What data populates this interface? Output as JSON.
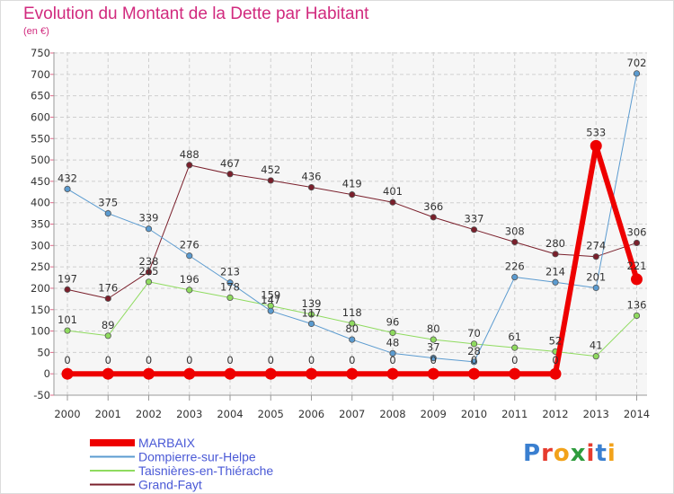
{
  "header": {
    "title": "Evolution du Montant de la Dette par Habitant",
    "subtitle": "(en €)"
  },
  "logo": {
    "text": "Proxiti",
    "colors": [
      "#3a7fd0",
      "#e63b2e",
      "#f2a21a",
      "#2e9c3d",
      "#e63b2e",
      "#3a7fd0",
      "#f2a21a"
    ]
  },
  "chart_data": {
    "type": "line",
    "title": "Evolution du Montant de la Dette par Habitant",
    "subtitle": "(en €)",
    "xlabel": "",
    "ylabel": "",
    "ylim": [
      -50,
      750
    ],
    "yticks": [
      -50,
      0,
      50,
      100,
      150,
      200,
      250,
      300,
      350,
      400,
      450,
      500,
      550,
      600,
      650,
      700,
      750
    ],
    "categories": [
      "2000",
      "2001",
      "2002",
      "2003",
      "2004",
      "2005",
      "2006",
      "2007",
      "2008",
      "2009",
      "2010",
      "2011",
      "2012",
      "2013",
      "2014"
    ],
    "grid": true,
    "legend_position": "bottom-left",
    "series": [
      {
        "name": "Grand-Fayt",
        "color": "#7a1f2b",
        "width": 1,
        "values": [
          197,
          176,
          238,
          488,
          467,
          452,
          436,
          419,
          401,
          366,
          337,
          308,
          280,
          274,
          306
        ]
      },
      {
        "name": "Taisnières-en-Thiérache",
        "color": "#8fdb5f",
        "width": 1,
        "values": [
          101,
          89,
          215,
          196,
          178,
          159,
          139,
          118,
          96,
          80,
          70,
          61,
          52,
          41,
          136
        ]
      },
      {
        "name": "Dompierre-sur-Helpe",
        "color": "#5b9bd0",
        "width": 1,
        "values": [
          432,
          375,
          339,
          276,
          213,
          147,
          117,
          80,
          48,
          37,
          28,
          226,
          214,
          201,
          702
        ]
      },
      {
        "name": "MARBAIX",
        "color": "#ee0000",
        "width": 6,
        "values": [
          0,
          0,
          0,
          0,
          0,
          0,
          0,
          0,
          0,
          0,
          0,
          0,
          0,
          533,
          221
        ]
      }
    ],
    "legend_order": [
      "MARBAIX",
      "Dompierre-sur-Helpe",
      "Taisnières-en-Thiérache",
      "Grand-Fayt"
    ]
  }
}
